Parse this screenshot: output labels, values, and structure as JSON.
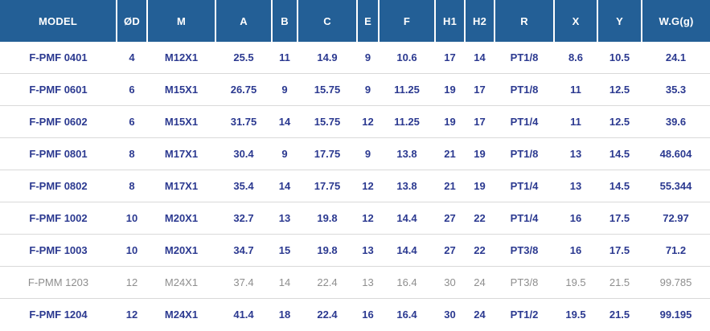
{
  "colors": {
    "header_bg": "#235f96",
    "header_text": "#ffffff",
    "header_divider": "#ffffff",
    "row_text": "#2b3990",
    "muted_text": "#8e8e8e",
    "divider": "#d9d9d9"
  },
  "table": {
    "columns": [
      "MODEL",
      "ØD",
      "M",
      "A",
      "B",
      "C",
      "E",
      "F",
      "H1",
      "H2",
      "R",
      "X",
      "Y",
      "W.G(g)"
    ],
    "rows": [
      {
        "muted": false,
        "cells": [
          "F-PMF 0401",
          "4",
          "M12X1",
          "25.5",
          "11",
          "14.9",
          "9",
          "10.6",
          "17",
          "14",
          "PT1/8",
          "8.6",
          "10.5",
          "24.1"
        ]
      },
      {
        "muted": false,
        "cells": [
          "F-PMF 0601",
          "6",
          "M15X1",
          "26.75",
          "9",
          "15.75",
          "9",
          "11.25",
          "19",
          "17",
          "PT1/8",
          "11",
          "12.5",
          "35.3"
        ]
      },
      {
        "muted": false,
        "cells": [
          "F-PMF 0602",
          "6",
          "M15X1",
          "31.75",
          "14",
          "15.75",
          "12",
          "11.25",
          "19",
          "17",
          "PT1/4",
          "11",
          "12.5",
          "39.6"
        ]
      },
      {
        "muted": false,
        "cells": [
          "F-PMF 0801",
          "8",
          "M17X1",
          "30.4",
          "9",
          "17.75",
          "9",
          "13.8",
          "21",
          "19",
          "PT1/8",
          "13",
          "14.5",
          "48.604"
        ]
      },
      {
        "muted": false,
        "cells": [
          "F-PMF 0802",
          "8",
          "M17X1",
          "35.4",
          "14",
          "17.75",
          "12",
          "13.8",
          "21",
          "19",
          "PT1/4",
          "13",
          "14.5",
          "55.344"
        ]
      },
      {
        "muted": false,
        "cells": [
          "F-PMF 1002",
          "10",
          "M20X1",
          "32.7",
          "13",
          "19.8",
          "12",
          "14.4",
          "27",
          "22",
          "PT1/4",
          "16",
          "17.5",
          "72.97"
        ]
      },
      {
        "muted": false,
        "cells": [
          "F-PMF 1003",
          "10",
          "M20X1",
          "34.7",
          "15",
          "19.8",
          "13",
          "14.4",
          "27",
          "22",
          "PT3/8",
          "16",
          "17.5",
          "71.2"
        ]
      },
      {
        "muted": true,
        "cells": [
          "F-PMM 1203",
          "12",
          "M24X1",
          "37.4",
          "14",
          "22.4",
          "13",
          "16.4",
          "30",
          "24",
          "PT3/8",
          "19.5",
          "21.5",
          "99.785"
        ]
      },
      {
        "muted": false,
        "cells": [
          "F-PMF 1204",
          "12",
          "M24X1",
          "41.4",
          "18",
          "22.4",
          "16",
          "16.4",
          "30",
          "24",
          "PT1/2",
          "19.5",
          "21.5",
          "99.195"
        ]
      }
    ]
  }
}
